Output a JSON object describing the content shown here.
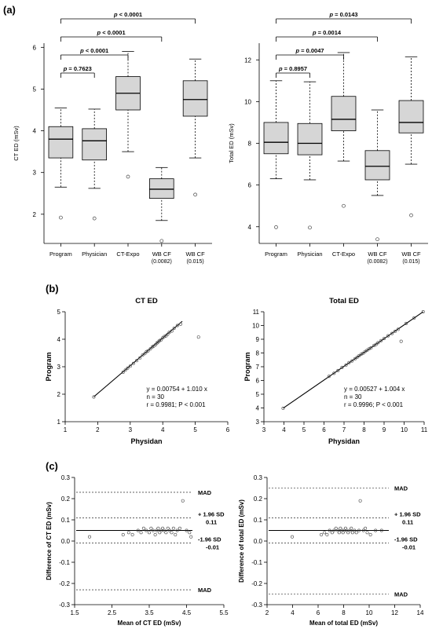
{
  "panels": {
    "a": "(a)",
    "b": "(b)",
    "c": "(c)"
  },
  "chart_data": [
    {
      "id": "a1",
      "type": "box",
      "ylabel": "CT ED (mSv)",
      "ylim": [
        1.3,
        6.1
      ],
      "yticks": [
        2,
        3,
        4,
        5,
        6
      ],
      "categories": [
        {
          "l1": "Program",
          "l2": ""
        },
        {
          "l1": "Physician",
          "l2": ""
        },
        {
          "l1": "CT-Expo",
          "l2": ""
        },
        {
          "l1": "WB CF",
          "l2": "(0.0082)"
        },
        {
          "l1": "WB CF",
          "l2": "(0.015)"
        }
      ],
      "boxes": [
        {
          "wlo": 2.65,
          "q1": 3.35,
          "med": 3.8,
          "q3": 4.1,
          "whi": 4.55,
          "out": [
            1.92
          ]
        },
        {
          "wlo": 2.62,
          "q1": 3.3,
          "med": 3.76,
          "q3": 4.05,
          "whi": 4.52,
          "out": [
            1.9
          ]
        },
        {
          "wlo": 3.5,
          "q1": 4.5,
          "med": 4.9,
          "q3": 5.3,
          "whi": 5.9,
          "out": [
            2.9
          ]
        },
        {
          "wlo": 1.85,
          "q1": 2.38,
          "med": 2.6,
          "q3": 2.85,
          "whi": 3.12,
          "out": [
            1.36
          ]
        },
        {
          "wlo": 3.35,
          "q1": 4.35,
          "med": 4.75,
          "q3": 5.2,
          "whi": 5.72,
          "out": [
            2.47
          ]
        }
      ],
      "brackets": [
        {
          "from": 0,
          "to": 1,
          "p_label": "p",
          "p_value": " = 0.7623"
        },
        {
          "from": 0,
          "to": 2,
          "p_label": "p",
          "p_value": " < 0.0001"
        },
        {
          "from": 0,
          "to": 3,
          "p_label": "p",
          "p_value": " < 0.0001"
        },
        {
          "from": 0,
          "to": 4,
          "p_label": "p",
          "p_value": " < 0.0001"
        }
      ]
    },
    {
      "id": "a2",
      "type": "box",
      "ylabel": "Total ED (mSv)",
      "ylim": [
        3.2,
        12.8
      ],
      "yticks": [
        4,
        6,
        8,
        10,
        12
      ],
      "categories": [
        {
          "l1": "Program",
          "l2": ""
        },
        {
          "l1": "Physician",
          "l2": ""
        },
        {
          "l1": "CT-Expo",
          "l2": ""
        },
        {
          "l1": "WB CF",
          "l2": "(0.0082)"
        },
        {
          "l1": "WB CF",
          "l2": "(0.015)"
        }
      ],
      "boxes": [
        {
          "wlo": 6.3,
          "q1": 7.5,
          "med": 8.05,
          "q3": 9.0,
          "whi": 11.0,
          "out": [
            3.98
          ]
        },
        {
          "wlo": 6.25,
          "q1": 7.45,
          "med": 8.0,
          "q3": 8.95,
          "whi": 10.95,
          "out": [
            3.96
          ]
        },
        {
          "wlo": 7.15,
          "q1": 8.6,
          "med": 9.15,
          "q3": 10.25,
          "whi": 12.35,
          "out": [
            5.0
          ]
        },
        {
          "wlo": 5.5,
          "q1": 6.25,
          "med": 6.9,
          "q3": 7.65,
          "whi": 9.6,
          "out": [
            3.4
          ]
        },
        {
          "wlo": 7.0,
          "q1": 8.5,
          "med": 9.0,
          "q3": 10.05,
          "whi": 12.15,
          "out": [
            4.55
          ]
        }
      ],
      "brackets": [
        {
          "from": 0,
          "to": 1,
          "p_label": "p",
          "p_value": " = 0.8957"
        },
        {
          "from": 0,
          "to": 2,
          "p_label": "p",
          "p_value": " = 0.0047"
        },
        {
          "from": 0,
          "to": 3,
          "p_label": "p",
          "p_value": " = 0.0014"
        },
        {
          "from": 0,
          "to": 4,
          "p_label": "p",
          "p_value": " = 0.0143"
        }
      ]
    },
    {
      "id": "b1",
      "type": "scatter",
      "title": "CT ED",
      "xlabel": "Physidan",
      "ylabel": "Program",
      "xlim": [
        1,
        6
      ],
      "ylim": [
        1,
        5
      ],
      "xticks": [
        1,
        2,
        3,
        4,
        5,
        6
      ],
      "yticks": [
        1,
        2,
        3,
        4,
        5
      ],
      "fit": {
        "intercept": 0.00754,
        "slope": 1.01,
        "x_range": [
          1.88,
          4.6
        ]
      },
      "annotation": [
        "y = 0.00754 + 1.010 x",
        "n = 30",
        "r = 0.9981; P < 0.001"
      ],
      "x": [
        1.88,
        2.78,
        2.85,
        2.92,
        3.0,
        3.1,
        3.2,
        3.3,
        3.38,
        3.45,
        3.5,
        3.55,
        3.62,
        3.68,
        3.72,
        3.78,
        3.82,
        3.86,
        3.9,
        3.95,
        4.0,
        4.05,
        4.1,
        4.15,
        4.2,
        4.28,
        4.35,
        4.45,
        4.55,
        5.1
      ],
      "y": [
        1.9,
        2.8,
        2.88,
        2.95,
        3.02,
        3.12,
        3.22,
        3.32,
        3.42,
        3.48,
        3.55,
        3.58,
        3.65,
        3.72,
        3.75,
        3.8,
        3.86,
        3.9,
        3.95,
        3.98,
        4.05,
        4.1,
        4.12,
        4.18,
        4.25,
        4.3,
        4.4,
        4.5,
        4.55,
        4.08
      ]
    },
    {
      "id": "b2",
      "type": "scatter",
      "title": "Total ED",
      "xlabel": "Physidan",
      "ylabel": "Program",
      "xlim": [
        3,
        11
      ],
      "ylim": [
        3,
        11
      ],
      "xticks": [
        3,
        4,
        5,
        6,
        7,
        8,
        9,
        10,
        11
      ],
      "yticks": [
        3,
        4,
        5,
        6,
        7,
        8,
        9,
        10,
        11
      ],
      "fit": {
        "intercept": 0.00527,
        "slope": 1.004,
        "x_range": [
          3.96,
          10.95
        ]
      },
      "annotation": [
        "y = 0.00527 + 1.004 x",
        "n = 30",
        "r = 0.9996; P < 0.001"
      ],
      "x": [
        3.96,
        6.25,
        6.5,
        6.7,
        6.9,
        7.1,
        7.25,
        7.4,
        7.55,
        7.65,
        7.75,
        7.85,
        7.95,
        8.05,
        8.15,
        8.25,
        8.35,
        8.5,
        8.6,
        8.7,
        8.85,
        9.0,
        9.2,
        9.4,
        9.55,
        9.7,
        9.85,
        10.1,
        10.5,
        10.95
      ],
      "y": [
        3.98,
        6.3,
        6.52,
        6.72,
        6.95,
        7.12,
        7.3,
        7.42,
        7.58,
        7.68,
        7.8,
        7.9,
        7.98,
        8.1,
        8.2,
        8.3,
        8.38,
        8.55,
        8.62,
        8.75,
        8.9,
        9.05,
        9.25,
        9.42,
        9.58,
        9.72,
        8.85,
        10.15,
        10.55,
        11.0
      ]
    },
    {
      "id": "c1",
      "type": "scatter",
      "xlabel": "Mean of CT ED (mSv)",
      "ylabel": "Difference of CT ED (mSv)",
      "xlim": [
        1.5,
        5.5
      ],
      "ylim": [
        -0.3,
        0.3
      ],
      "xticks": [
        1.5,
        2.5,
        3.5,
        4.5,
        5.5
      ],
      "yticks": [
        -0.3,
        -0.2,
        -0.1,
        0.0,
        0.1,
        0.2,
        0.3
      ],
      "ytick_labels": [
        "-0.3",
        "-0.2",
        "-0.1",
        "0.0",
        "0.1",
        "0.2",
        "0.3"
      ],
      "mean_line": 0.05,
      "limits": [
        {
          "y": 0.23,
          "label": "MAD",
          "sub": ""
        },
        {
          "y": 0.11,
          "label": "+ 1.96 SD",
          "sub": "0.11"
        },
        {
          "y": -0.01,
          "label": "-1.96 SD",
          "sub": "-0.01"
        },
        {
          "y": -0.23,
          "label": "MAD",
          "sub": ""
        }
      ],
      "x": [
        1.9,
        2.8,
        2.95,
        3.05,
        3.2,
        3.28,
        3.35,
        3.42,
        3.5,
        3.55,
        3.6,
        3.66,
        3.7,
        3.74,
        3.78,
        3.82,
        3.86,
        3.9,
        3.95,
        4.0,
        4.05,
        4.1,
        4.15,
        4.2,
        4.25,
        4.32,
        4.4,
        4.5,
        4.58,
        4.62
      ],
      "y": [
        0.02,
        0.03,
        0.04,
        0.03,
        0.05,
        0.04,
        0.06,
        0.05,
        0.04,
        0.06,
        0.05,
        0.03,
        0.05,
        0.06,
        0.04,
        0.05,
        0.06,
        0.05,
        0.04,
        0.06,
        0.05,
        0.04,
        0.06,
        0.03,
        0.05,
        0.06,
        0.19,
        0.05,
        0.04,
        0.02
      ]
    },
    {
      "id": "c2",
      "type": "scatter",
      "xlabel": "Mean of total ED (mSv)",
      "ylabel": "Difference of total ED (mSv)",
      "xlim": [
        2,
        14
      ],
      "ylim": [
        -0.3,
        0.3
      ],
      "xticks": [
        2,
        4,
        6,
        8,
        10,
        12,
        14
      ],
      "yticks": [
        -0.3,
        -0.2,
        -0.1,
        0.0,
        0.1,
        0.2,
        0.3
      ],
      "ytick_labels": [
        "-0.3",
        "-0.2",
        "-0.1",
        "0.0",
        "0.1",
        "0.2",
        "0.3"
      ],
      "mean_line": 0.05,
      "limits": [
        {
          "y": 0.25,
          "label": "MAD",
          "sub": ""
        },
        {
          "y": 0.11,
          "label": "+ 1.96 SD",
          "sub": "0.11"
        },
        {
          "y": -0.01,
          "label": "-1.96 SD",
          "sub": "-0.01"
        },
        {
          "y": -0.25,
          "label": "MAD",
          "sub": ""
        }
      ],
      "x": [
        3.97,
        6.25,
        6.5,
        6.7,
        6.9,
        7.1,
        7.25,
        7.4,
        7.55,
        7.65,
        7.75,
        7.85,
        7.95,
        8.05,
        8.15,
        8.25,
        8.35,
        8.5,
        8.6,
        8.7,
        8.85,
        9.0,
        9.2,
        9.3,
        9.55,
        9.7,
        9.85,
        10.1,
        10.5,
        10.97
      ],
      "y": [
        0.02,
        0.03,
        0.04,
        0.03,
        0.05,
        0.04,
        0.05,
        0.06,
        0.05,
        0.04,
        0.06,
        0.05,
        0.04,
        0.05,
        0.06,
        0.05,
        0.04,
        0.05,
        0.06,
        0.04,
        0.05,
        0.04,
        0.05,
        0.19,
        0.05,
        0.06,
        0.04,
        0.03,
        0.05,
        0.05
      ]
    }
  ]
}
